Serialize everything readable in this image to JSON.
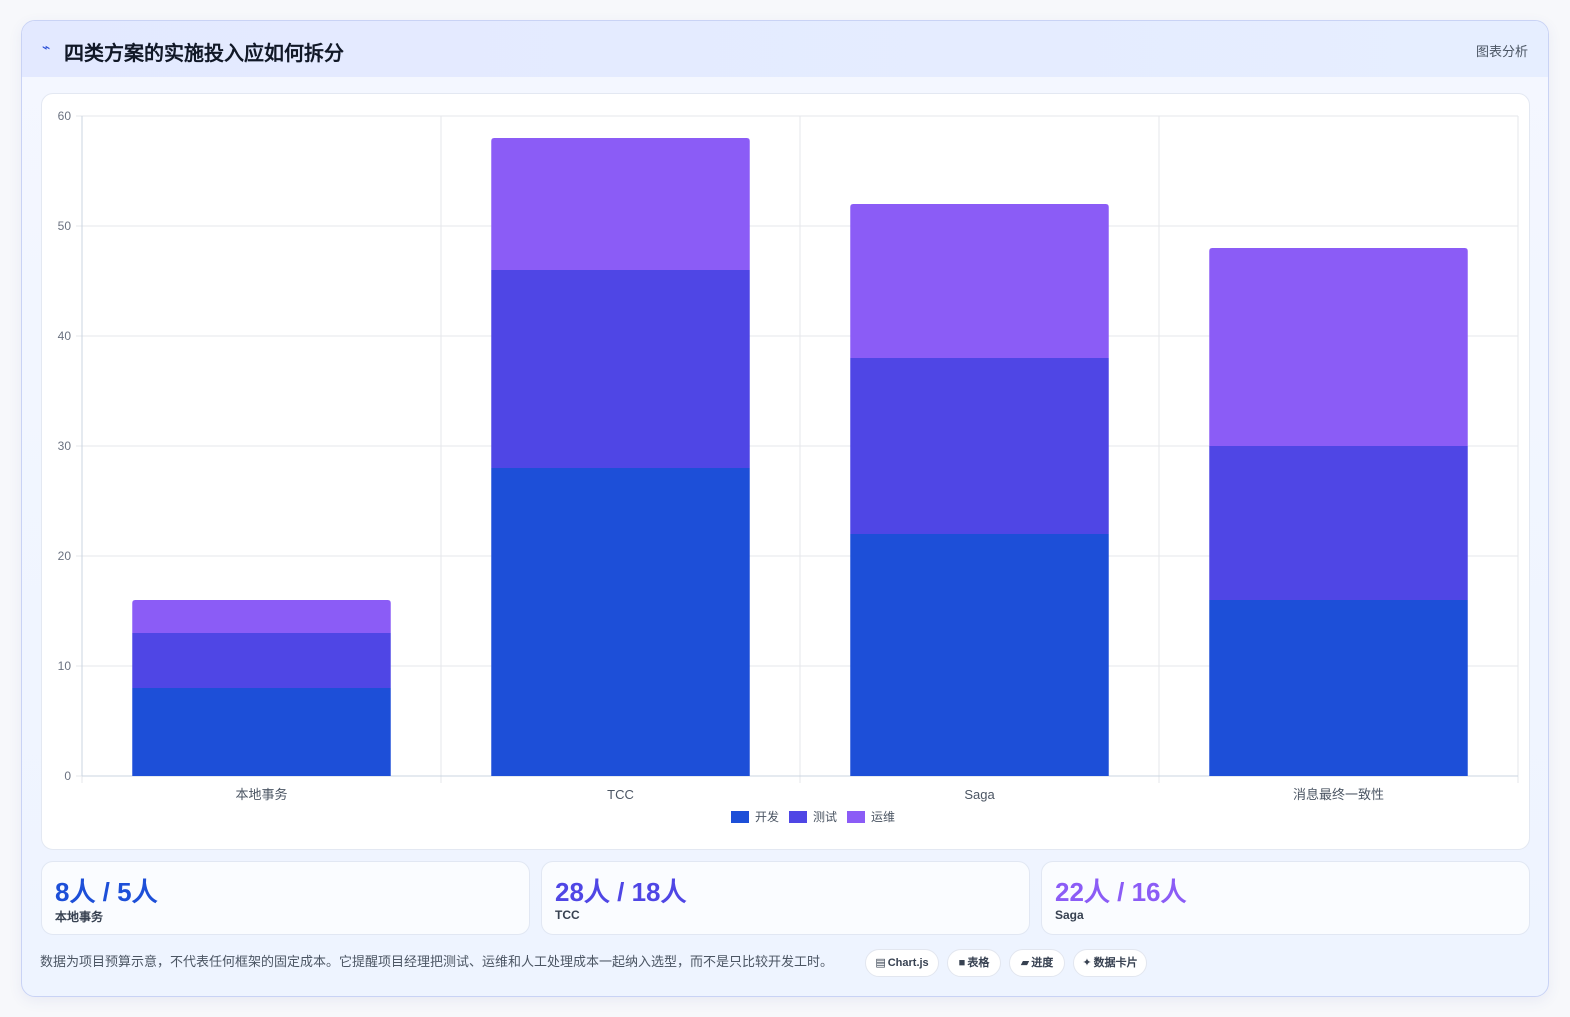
{
  "header": {
    "icon": "trend-icon",
    "title": "四类方案的实施投入应如何拆分",
    "tag": "图表分析"
  },
  "chart_data": {
    "type": "bar",
    "stacked": true,
    "categories": [
      "本地事务",
      "TCC",
      "Saga",
      "消息最终一致性"
    ],
    "series": [
      {
        "name": "开发",
        "values": [
          8,
          28,
          22,
          16
        ],
        "color": "#1d4fd8"
      },
      {
        "name": "测试",
        "values": [
          5,
          18,
          16,
          14
        ],
        "color": "#4f46e5"
      },
      {
        "name": "运维",
        "values": [
          3,
          12,
          14,
          18
        ],
        "color": "#8b5cf6"
      }
    ],
    "ylim": [
      0,
      60
    ],
    "yticks": [
      0,
      10,
      20,
      30,
      40,
      50,
      60
    ],
    "grid": true,
    "legend": "bottom"
  },
  "stats": [
    {
      "value": "8人 / 5人",
      "label": "本地事务",
      "color": "#1d4fd8"
    },
    {
      "value": "28人 / 18人",
      "label": "TCC",
      "color": "#4f46e5"
    },
    {
      "value": "22人 / 16人",
      "label": "Saga",
      "color": "#8b5cf6"
    }
  ],
  "footer": {
    "note": "数据为项目预算示意，不代表任何框架的固定成本。它提醒项目经理把测试、运维和人工处理成本一起纳入选型，而不是只比较开发工时。",
    "pills": [
      {
        "icon": "chart-icon",
        "glyph": "▤",
        "label": "Chart.js"
      },
      {
        "icon": "table-icon",
        "glyph": "■",
        "label": "表格"
      },
      {
        "icon": "progress-icon",
        "glyph": "▰",
        "label": "进度"
      },
      {
        "icon": "sparkle-icon",
        "glyph": "✦",
        "label": "数据卡片"
      }
    ]
  }
}
